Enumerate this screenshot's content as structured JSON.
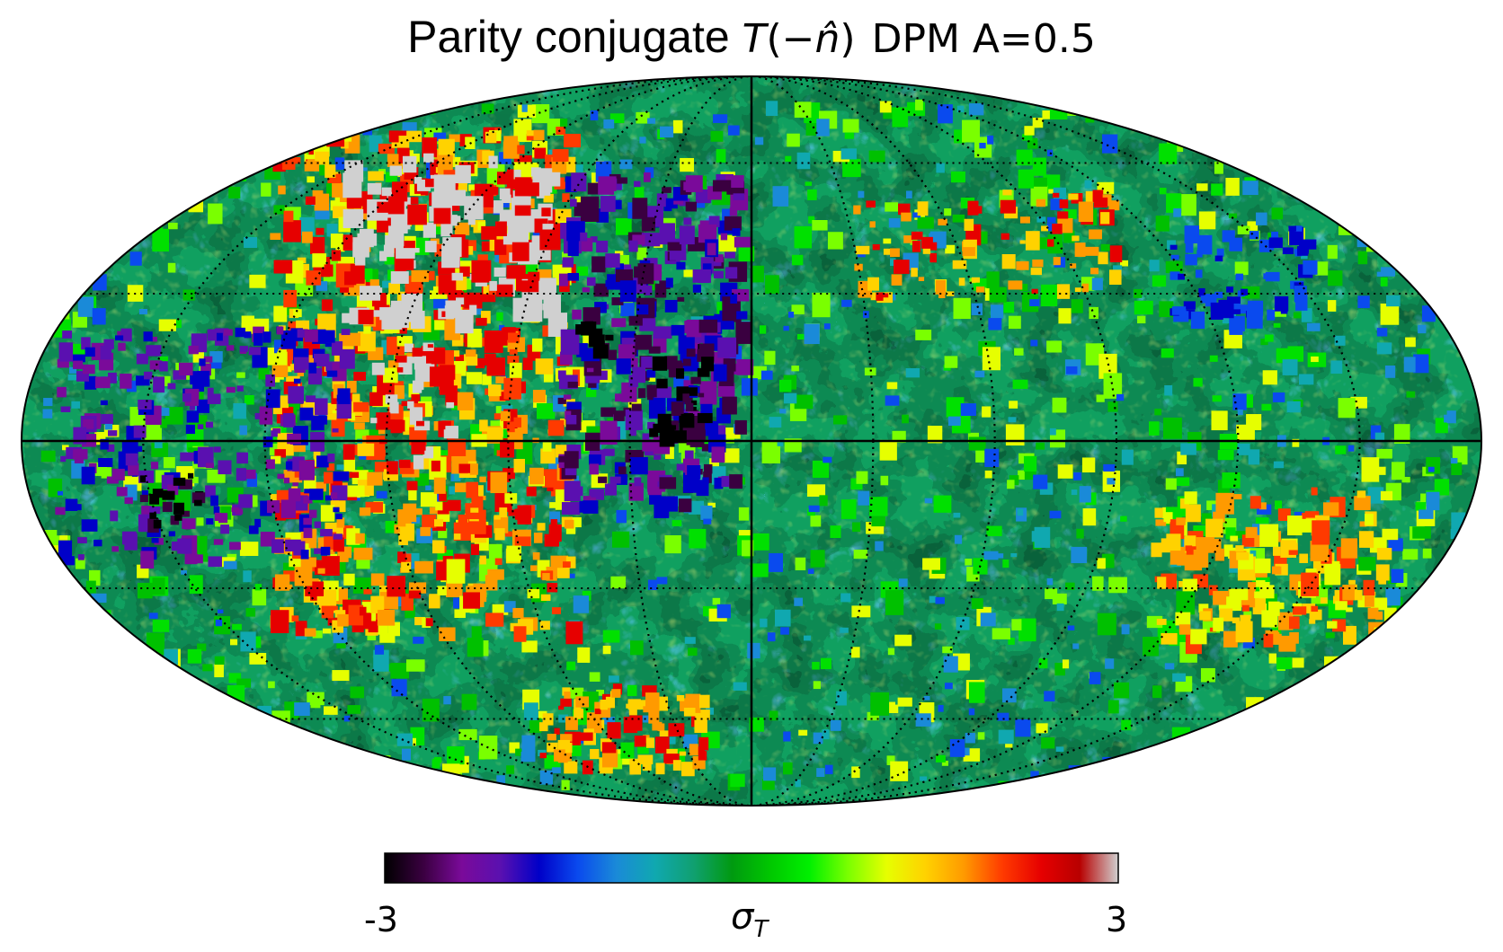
{
  "figure": {
    "title": {
      "prefix": "Parity conjugate ",
      "math_T": "T",
      "math_open": "(",
      "math_minus": "−",
      "math_n": "n̂",
      "math_close": ")",
      "suffix": "DPM A=0.5"
    },
    "map": {
      "projection": "mollweide",
      "graticule": "dotted",
      "axes_lines": "solid",
      "field_description": "noisy temperature anomaly field, hot region upper-left with saturated patches, cold patch left of center meridian"
    },
    "colorbar": {
      "min_label": "-3",
      "max_label": "3",
      "label_symbol": "σ",
      "label_sub": "T",
      "stops": [
        "#000000",
        "#3a0040",
        "#7a0a9a",
        "#5a10b0",
        "#0000c8",
        "#0a4aee",
        "#1a8ad8",
        "#10a8b0",
        "#10a070",
        "#009a10",
        "#00c800",
        "#00f000",
        "#7aff00",
        "#e6ff00",
        "#ffd200",
        "#ff9a00",
        "#ff3a00",
        "#e60000",
        "#b80000",
        "#d0d0d0"
      ]
    }
  }
}
